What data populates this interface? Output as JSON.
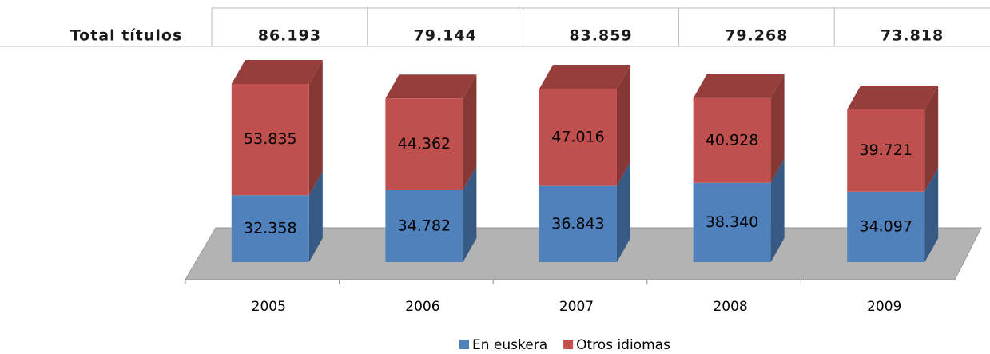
{
  "table": {
    "label": "Total títulos",
    "cells": [
      "86.193",
      "79.144",
      "83.859",
      "79.268",
      "73.818"
    ]
  },
  "chart_data": {
    "type": "stacked-bar-3d",
    "categories": [
      "2005",
      "2006",
      "2007",
      "2008",
      "2009"
    ],
    "series": [
      {
        "name": "En euskera",
        "color": "#4f81bd",
        "values": [
          32358,
          34782,
          36843,
          38340,
          34097
        ],
        "value_labels": [
          "32.358",
          "34.782",
          "36.843",
          "38.340",
          "34.097"
        ]
      },
      {
        "name": "Otros idiomas",
        "color": "#c0504d",
        "values": [
          53835,
          44362,
          47016,
          40928,
          39721
        ],
        "value_labels": [
          "53.835",
          "44.362",
          "47.016",
          "40.928",
          "39.721"
        ]
      }
    ]
  }
}
